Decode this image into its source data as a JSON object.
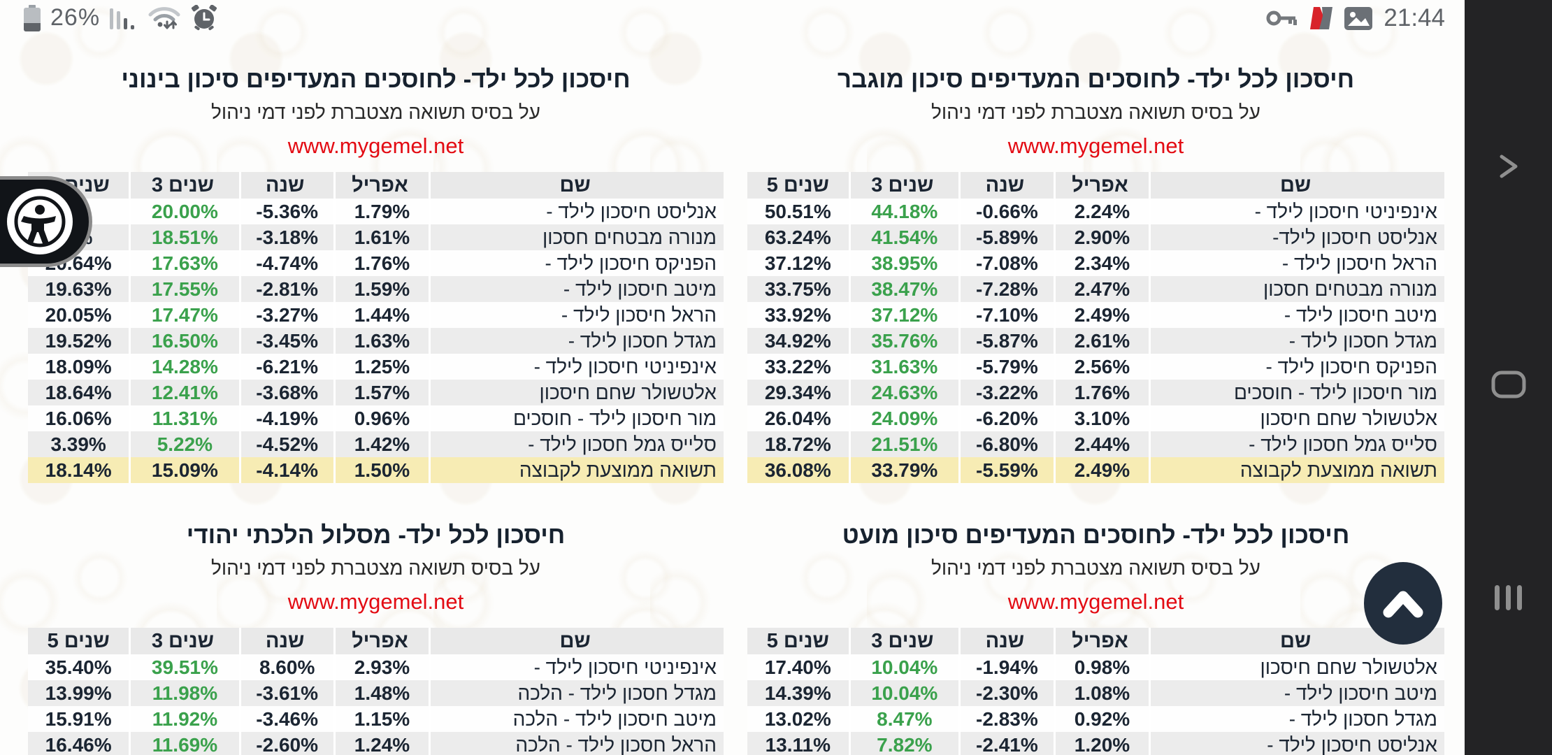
{
  "status_bar": {
    "battery_percent": "26%",
    "time": "21:44",
    "left_icons": [
      "battery-icon",
      "signal-icon",
      "wifi-icon",
      "alarm-icon"
    ],
    "right_icons": [
      "key-icon",
      "n-app-icon",
      "image-icon"
    ]
  },
  "nav_bar": {
    "buttons": [
      "back",
      "home",
      "recents"
    ]
  },
  "shared": {
    "subtitle": "על בסיס תשואה מצטברת לפני דמי ניהול",
    "link": "www.mygemel.net",
    "columns": [
      "שם",
      "אפריל",
      "שנה",
      "3 שנים",
      "5 שנים"
    ]
  },
  "colors": {
    "navy_text": "#17222f",
    "green_value": "#3aa14c",
    "red_link": "#e30b13",
    "average_row_bg": "#f7ecb4",
    "header_bg": "#e9e9e9",
    "stripe_bg": "#ececec",
    "navbar_bg": "#232325"
  },
  "tables": [
    {
      "title": "חיסכון לכל ילד- לחוסכים המעדיפים סיכון מוגבר",
      "rows": [
        {
          "name": "אינפיניטי חיסכון לילד -",
          "april": "2.24%",
          "year": "-0.66%",
          "y3": "44.18%",
          "y5": "50.51%"
        },
        {
          "name": "אנליסט חיסכון לילד-",
          "april": "2.90%",
          "year": "-5.89%",
          "y3": "41.54%",
          "y5": "63.24%"
        },
        {
          "name": "הראל חיסכון לילד -",
          "april": "2.34%",
          "year": "-7.08%",
          "y3": "38.95%",
          "y5": "37.12%"
        },
        {
          "name": "מנורה מבטחים חסכון",
          "april": "2.47%",
          "year": "-7.28%",
          "y3": "38.47%",
          "y5": "33.75%"
        },
        {
          "name": "מיטב חיסכון לילד -",
          "april": "2.49%",
          "year": "-7.10%",
          "y3": "37.12%",
          "y5": "33.92%"
        },
        {
          "name": "מגדל חסכון לילד -",
          "april": "2.61%",
          "year": "-5.87%",
          "y3": "35.76%",
          "y5": "34.92%"
        },
        {
          "name": "הפניקס חיסכון לילד -",
          "april": "2.56%",
          "year": "-5.79%",
          "y3": "31.63%",
          "y5": "33.22%"
        },
        {
          "name": "מור חיסכון לילד - חוסכים",
          "april": "1.76%",
          "year": "-3.22%",
          "y3": "24.63%",
          "y5": "29.34%"
        },
        {
          "name": "אלטשולר שחם חיסכון",
          "april": "3.10%",
          "year": "-6.20%",
          "y3": "24.09%",
          "y5": "26.04%"
        },
        {
          "name": "סלייס גמל חסכון לילד -",
          "april": "2.44%",
          "year": "-6.80%",
          "y3": "21.51%",
          "y5": "18.72%"
        },
        {
          "name": "תשואה ממוצעת לקבוצה",
          "april": "2.49%",
          "year": "-5.59%",
          "y3": "33.79%",
          "y5": "36.08%",
          "avg": true
        }
      ]
    },
    {
      "title": "חיסכון לכל ילד- לחוסכים המעדיפים סיכון בינוני",
      "rows": [
        {
          "name": "אנליסט חיסכון לילד -",
          "april": "1.79%",
          "year": "-5.36%",
          "y3": "20.00%",
          "y5": "%"
        },
        {
          "name": "מנורה מבטחים חסכון",
          "april": "1.61%",
          "year": "-3.18%",
          "y3": "18.51%",
          "y5": "4%"
        },
        {
          "name": "הפניקס חיסכון לילד -",
          "april": "1.76%",
          "year": "-4.74%",
          "y3": "17.63%",
          "y5": "20.64%"
        },
        {
          "name": "מיטב חיסכון לילד -",
          "april": "1.59%",
          "year": "-2.81%",
          "y3": "17.55%",
          "y5": "19.63%"
        },
        {
          "name": "הראל חיסכון לילד -",
          "april": "1.44%",
          "year": "-3.27%",
          "y3": "17.47%",
          "y5": "20.05%"
        },
        {
          "name": "מגדל חסכון לילד -",
          "april": "1.63%",
          "year": "-3.45%",
          "y3": "16.50%",
          "y5": "19.52%"
        },
        {
          "name": "אינפיניטי חיסכון לילד -",
          "april": "1.25%",
          "year": "-6.21%",
          "y3": "14.28%",
          "y5": "18.09%"
        },
        {
          "name": "אלטשולר שחם חיסכון",
          "april": "1.57%",
          "year": "-3.68%",
          "y3": "12.41%",
          "y5": "18.64%"
        },
        {
          "name": "מור חיסכון לילד - חוסכים",
          "april": "0.96%",
          "year": "-4.19%",
          "y3": "11.31%",
          "y5": "16.06%"
        },
        {
          "name": "סלייס גמל חסכון לילד -",
          "april": "1.42%",
          "year": "-4.52%",
          "y3": "5.22%",
          "y5": "3.39%"
        },
        {
          "name": "תשואה ממוצעת לקבוצה",
          "april": "1.50%",
          "year": "-4.14%",
          "y3": "15.09%",
          "y5": "18.14%",
          "avg": true
        }
      ]
    },
    {
      "title": "חיסכון לכל ילד- לחוסכים המעדיפים סיכון מועט",
      "rows": [
        {
          "name": "אלטשולר שחם חיסכון",
          "april": "0.98%",
          "year": "-1.94%",
          "y3": "10.04%",
          "y5": "17.40%"
        },
        {
          "name": "מיטב חיסכון לילד -",
          "april": "1.08%",
          "year": "-2.30%",
          "y3": "10.04%",
          "y5": "14.39%"
        },
        {
          "name": "מגדל חסכון לילד -",
          "april": "0.92%",
          "year": "-2.83%",
          "y3": "8.47%",
          "y5": "13.02%"
        },
        {
          "name": "אנליסט חיסכון לילד -",
          "april": "1.20%",
          "year": "-2.41%",
          "y3": "7.82%",
          "y5": "13.11%"
        }
      ]
    },
    {
      "title": "חיסכון לכל ילד- מסלול הלכתי יהודי",
      "rows": [
        {
          "name": "אינפיניטי חיסכון לילד -",
          "april": "2.93%",
          "year": "8.60%",
          "y3": "39.51%",
          "y5": "35.40%"
        },
        {
          "name": "מגדל חסכון לילד - הלכה",
          "april": "1.48%",
          "year": "-3.61%",
          "y3": "11.98%",
          "y5": "13.99%"
        },
        {
          "name": "מיטב חיסכון לילד - הלכה",
          "april": "1.15%",
          "year": "-3.46%",
          "y3": "11.92%",
          "y5": "15.91%"
        },
        {
          "name": "הראל חסכון לילד - הלכה",
          "april": "1.24%",
          "year": "-2.60%",
          "y3": "11.69%",
          "y5": "16.46%"
        }
      ]
    }
  ]
}
